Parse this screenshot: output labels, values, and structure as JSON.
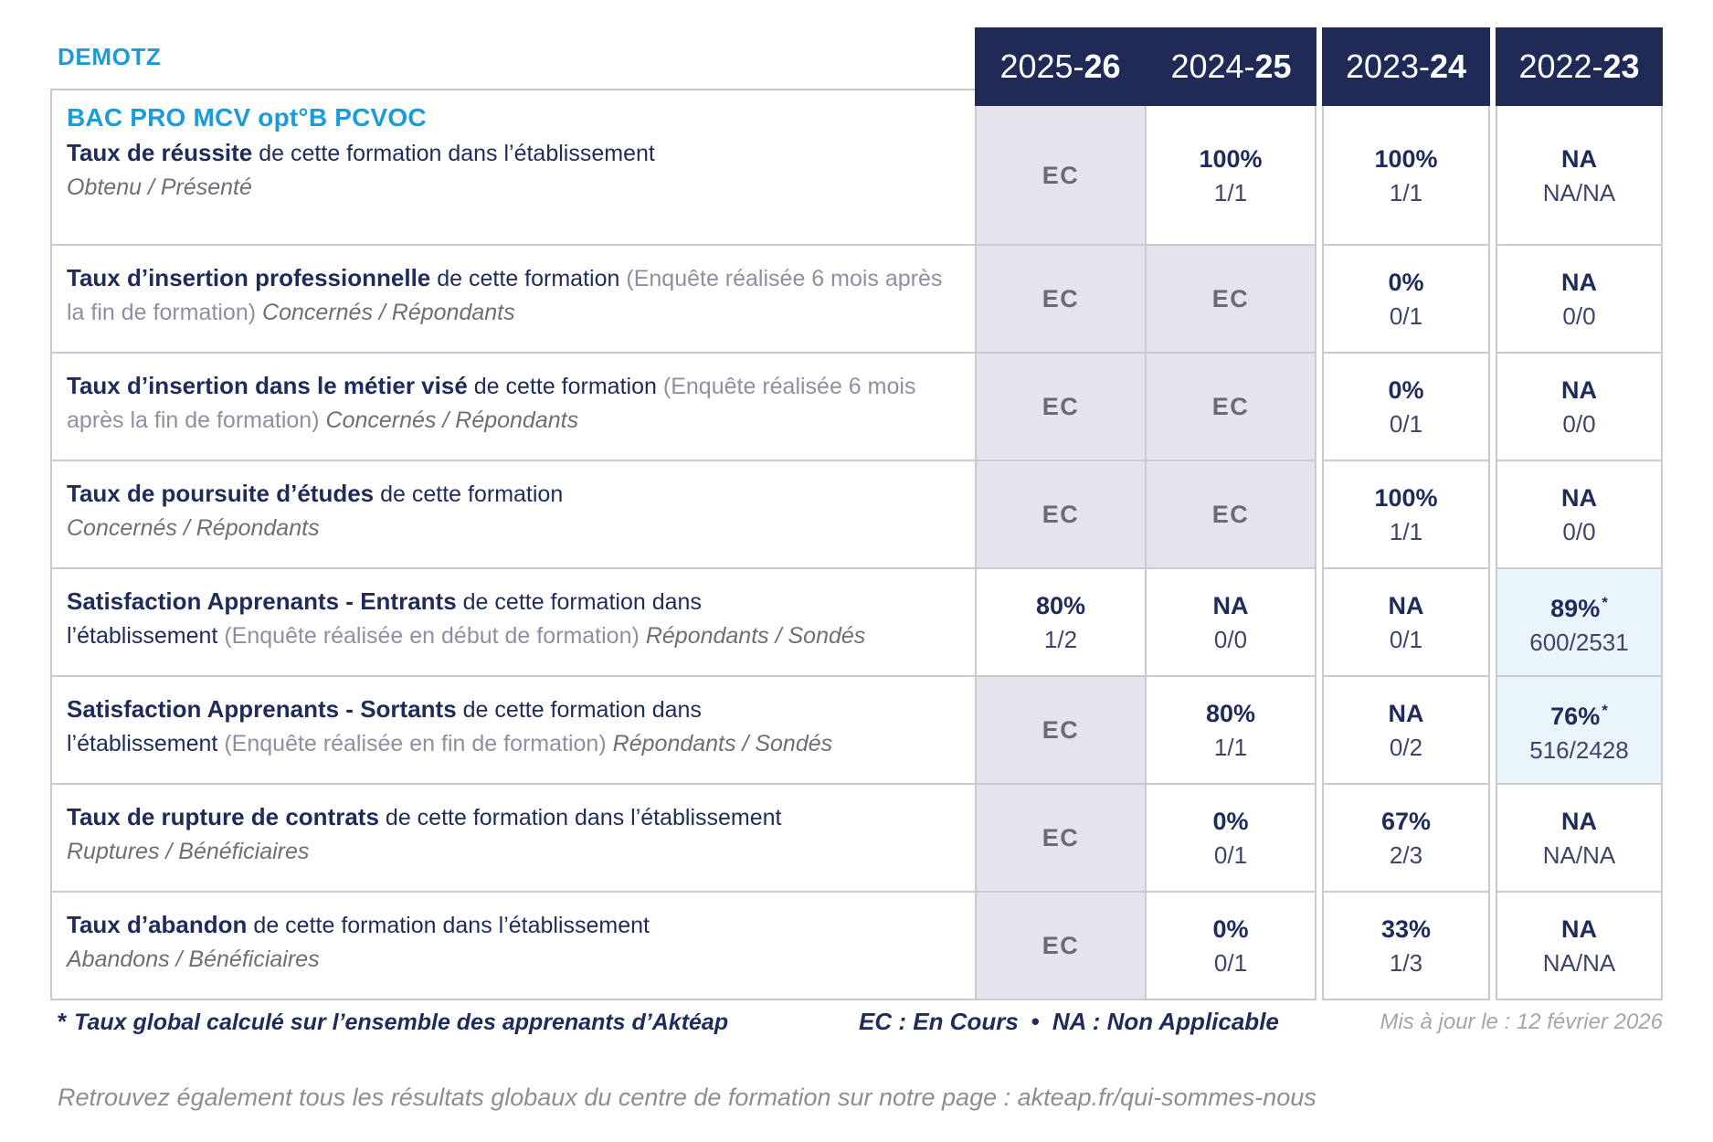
{
  "org": "DEMOTZ",
  "program_title": "BAC PRO MCV opt°B PCVOC",
  "years": [
    {
      "pre": "2025-",
      "bold": "26"
    },
    {
      "pre": "2024-",
      "bold": "25"
    },
    {
      "pre": "2023-",
      "bold": "24"
    },
    {
      "pre": "2022-",
      "bold": "23"
    }
  ],
  "rows": [
    {
      "program": true,
      "heading": "Taux de réussite",
      "text": "de cette formation dans l’établissement",
      "paren": "",
      "subtitle": "Obtenu / Présenté",
      "subtitle_inline": false,
      "cells": [
        {
          "v": "EC",
          "style": "ec"
        },
        {
          "v": "100%",
          "sub": "1/1"
        },
        {
          "v": "100%",
          "sub": "1/1"
        },
        {
          "v": "NA",
          "sub": "NA/NA"
        }
      ]
    },
    {
      "heading": "Taux d’insertion professionnelle",
      "text": "de cette formation",
      "paren": "(Enquête réalisée 6 mois après la fin de formation)",
      "subtitle": "Concernés / Répondants",
      "subtitle_inline": true,
      "cells": [
        {
          "v": "EC",
          "style": "ec"
        },
        {
          "v": "EC",
          "style": "ec"
        },
        {
          "v": "0%",
          "sub": "0/1"
        },
        {
          "v": "NA",
          "sub": "0/0"
        }
      ]
    },
    {
      "heading": "Taux d’insertion dans le métier visé",
      "text": "de cette formation",
      "paren": "(Enquête réalisée 6 mois après la fin de formation)",
      "subtitle": "Concernés / Répondants",
      "subtitle_inline": true,
      "cells": [
        {
          "v": "EC",
          "style": "ec"
        },
        {
          "v": "EC",
          "style": "ec"
        },
        {
          "v": "0%",
          "sub": "0/1"
        },
        {
          "v": "NA",
          "sub": "0/0"
        }
      ]
    },
    {
      "heading": "Taux de poursuite d’études",
      "text": "de cette formation",
      "paren": "",
      "subtitle": "Concernés / Répondants",
      "subtitle_inline": false,
      "cells": [
        {
          "v": "EC",
          "style": "ec"
        },
        {
          "v": "EC",
          "style": "ec"
        },
        {
          "v": "100%",
          "sub": "1/1"
        },
        {
          "v": "NA",
          "sub": "0/0"
        }
      ]
    },
    {
      "heading": "Satisfaction Apprenants - Entrants",
      "text": "de cette formation dans",
      "br": true,
      "text2": "l’établissement",
      "paren": "(Enquête réalisée en début de formation)",
      "subtitle": "Répondants / Sondés",
      "subtitle_inline": true,
      "cells": [
        {
          "v": "80%",
          "sub": "1/2"
        },
        {
          "v": "NA",
          "sub": "0/0"
        },
        {
          "v": "NA",
          "sub": "0/1"
        },
        {
          "v": "89%",
          "sub": "600/2531",
          "star": true,
          "style": "hl"
        }
      ]
    },
    {
      "heading": "Satisfaction Apprenants - Sortants",
      "text": "de cette formation dans",
      "br": true,
      "text2": "l’établissement",
      "paren": "(Enquête réalisée en fin de formation)",
      "subtitle": "Répondants / Sondés",
      "subtitle_inline": true,
      "cells": [
        {
          "v": "EC",
          "style": "ec"
        },
        {
          "v": "80%",
          "sub": "1/1"
        },
        {
          "v": "NA",
          "sub": "0/2"
        },
        {
          "v": "76%",
          "sub": "516/2428",
          "star": true,
          "style": "hl"
        }
      ]
    },
    {
      "heading": "Taux de rupture de contrats",
      "text": "de cette formation dans l’établissement",
      "paren": "",
      "subtitle": "Ruptures / Bénéficiaires",
      "subtitle_inline": false,
      "cells": [
        {
          "v": "EC",
          "style": "ec"
        },
        {
          "v": "0%",
          "sub": "0/1"
        },
        {
          "v": "67%",
          "sub": "2/3"
        },
        {
          "v": "NA",
          "sub": "NA/NA"
        }
      ]
    },
    {
      "heading": "Taux d’abandon",
      "text": "de cette formation dans l’établissement",
      "paren": "",
      "subtitle": "Abandons / Bénéficiaires",
      "subtitle_inline": false,
      "cells": [
        {
          "v": "EC",
          "style": "ec"
        },
        {
          "v": "0%",
          "sub": "0/1"
        },
        {
          "v": "33%",
          "sub": "1/3"
        },
        {
          "v": "NA",
          "sub": "NA/NA"
        }
      ]
    }
  ],
  "footnote": {
    "star": "*",
    "text": "Taux global calculé sur l’ensemble des apprenants d’Aktéap",
    "legend_ec": "EC : En Cours",
    "legend_na": "NA : Non Applicable",
    "updated": "Mis à jour le : 12 février 2026"
  },
  "symbols": {
    "star": "*",
    "bullet": "•"
  },
  "bottom_note": "Retrouvez également tous les résultats globaux du centre de formation sur notre page : akteap.fr/qui-sommes-nous",
  "colors": {
    "navy": "#1f2a56",
    "accent_blue": "#1b9bd8",
    "ec_cell_bg": "#e4e3ee",
    "highlight_cell_bg": "#eaf4fb",
    "border_gray": "#c9c9d0",
    "secondary_text": "#6e6e77",
    "muted_text": "#a5a5aa"
  }
}
